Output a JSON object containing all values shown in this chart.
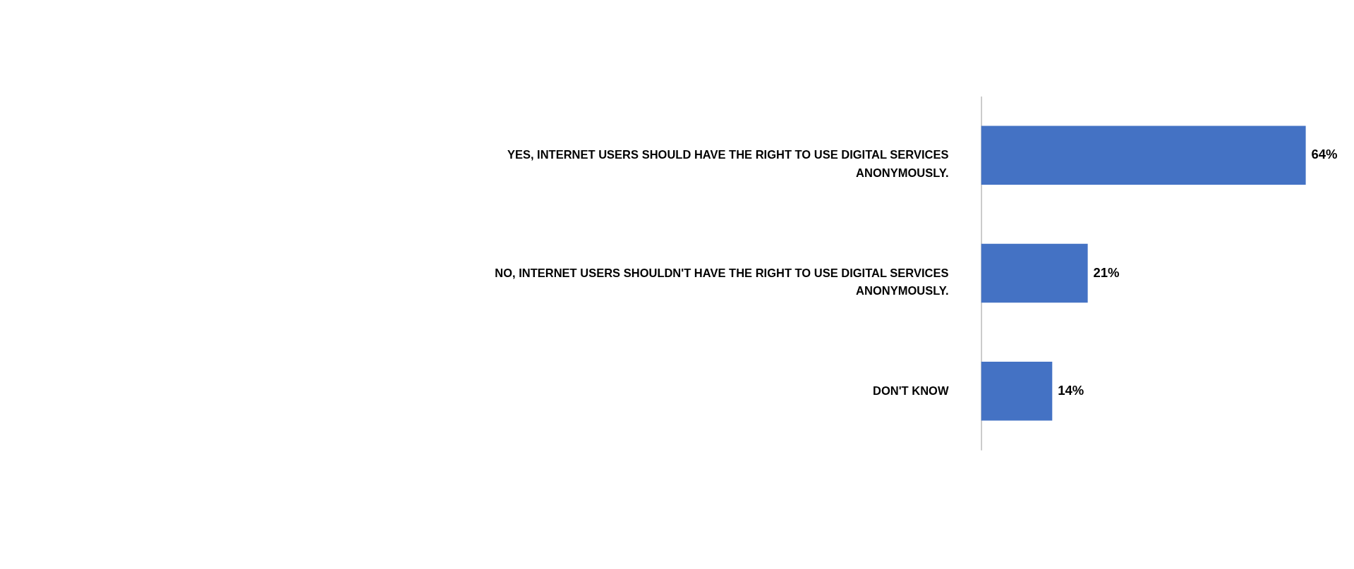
{
  "chart_data": {
    "type": "bar",
    "orientation": "horizontal",
    "categories": [
      "YES, INTERNET USERS SHOULD HAVE THE RIGHT TO USE DIGITAL SERVICES ANONYMOUSLY.",
      "NO, INTERNET USERS SHOULDN'T HAVE THE RIGHT TO USE DIGITAL SERVICES ANONYMOUSLY.",
      "DON'T KNOW"
    ],
    "values": [
      64,
      21,
      14
    ],
    "value_labels": [
      "64%",
      "21%",
      "14%"
    ],
    "color": "#4472c4",
    "grid": false,
    "tick_labels": false
  }
}
